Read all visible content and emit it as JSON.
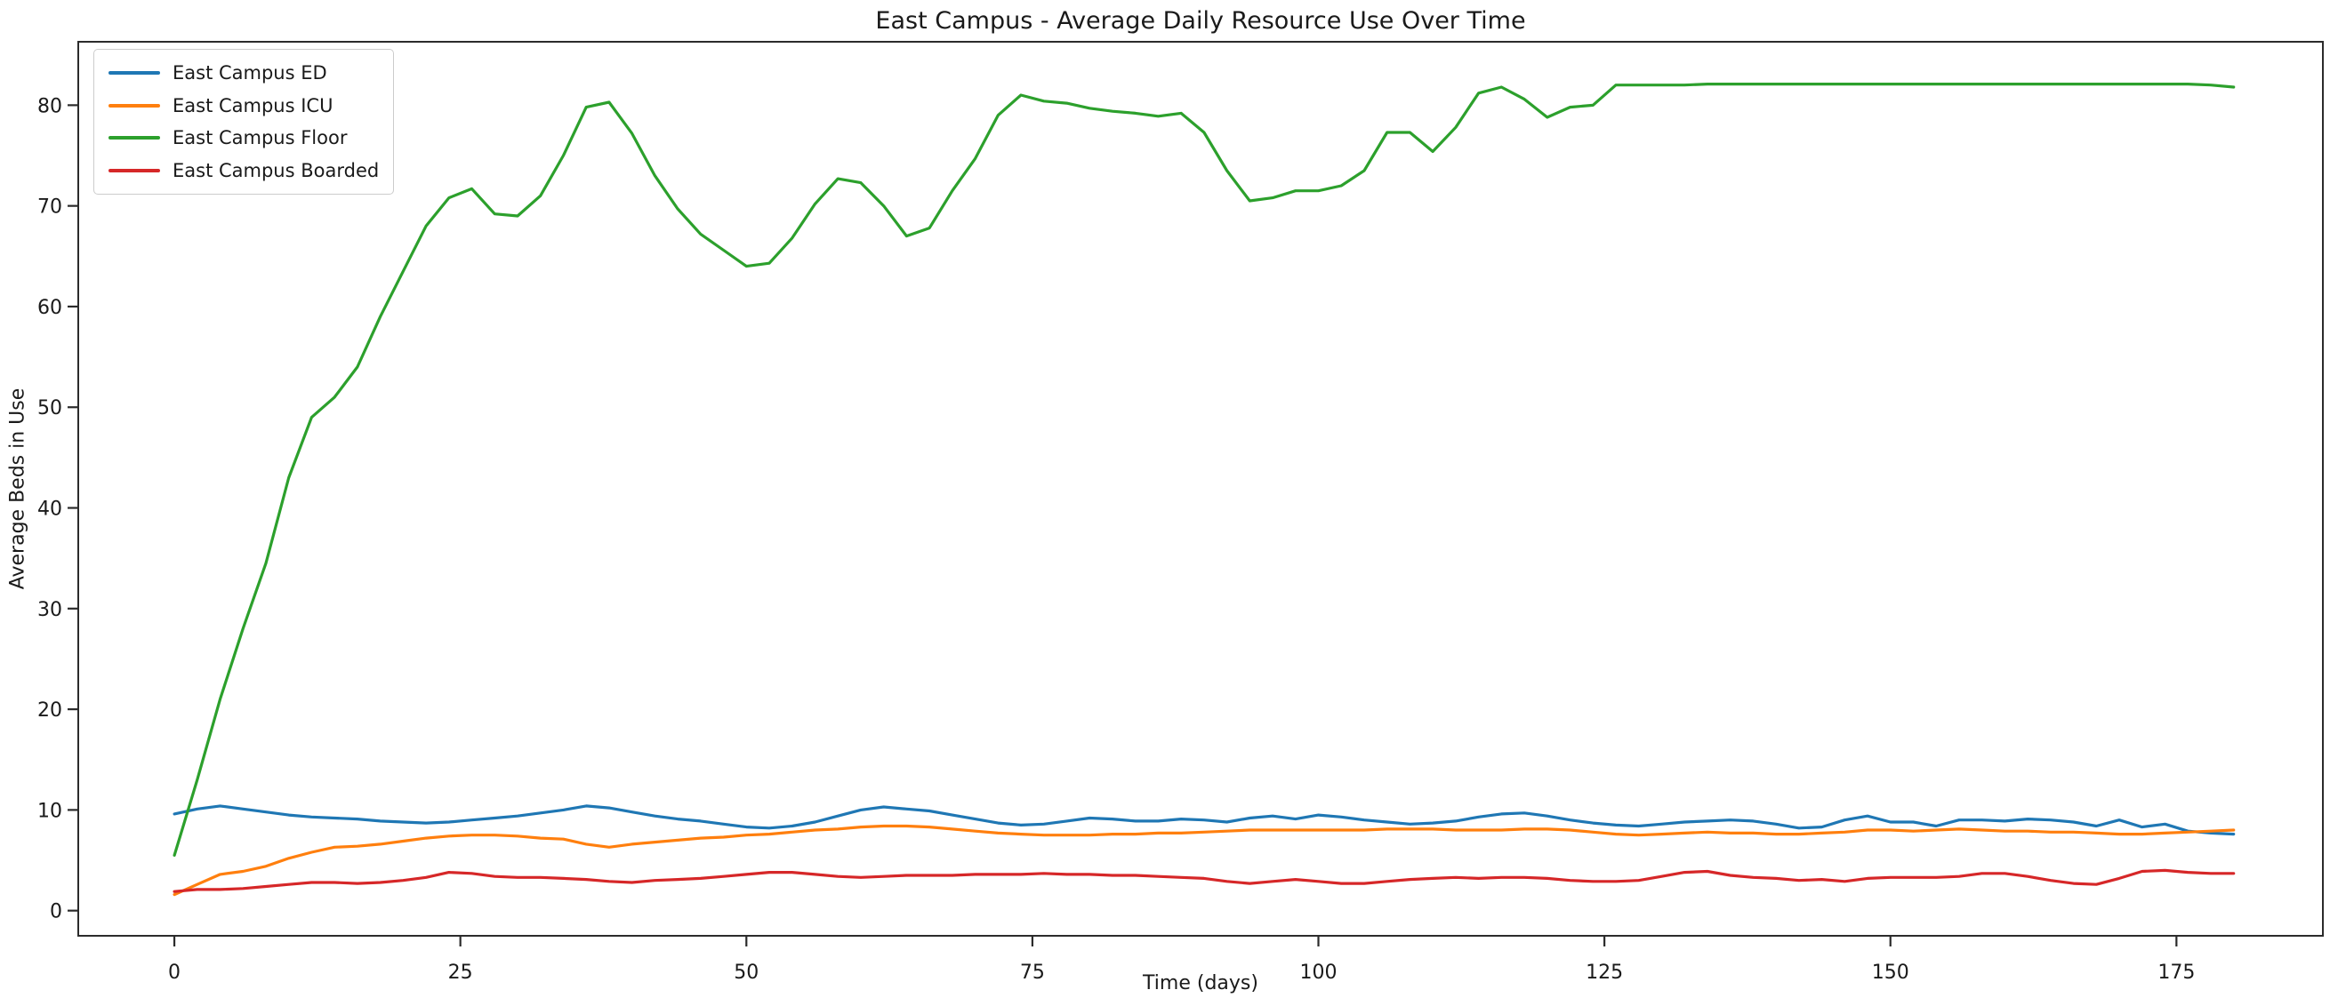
{
  "chart_data": {
    "type": "line",
    "title": "East Campus - Average Daily Resource Use Over Time",
    "xlabel": "Time (days)",
    "ylabel": "Average Beds in Use",
    "xlim": [
      -8.4,
      187.8
    ],
    "ylim": [
      -2.5,
      86.3
    ],
    "xticks": [
      0,
      25,
      50,
      75,
      100,
      125,
      150,
      175
    ],
    "yticks": [
      0,
      10,
      20,
      30,
      40,
      50,
      60,
      70,
      80
    ],
    "grid": false,
    "legend_position": "upper left",
    "x": [
      0,
      2,
      4,
      6,
      8,
      10,
      12,
      14,
      16,
      18,
      20,
      22,
      24,
      26,
      28,
      30,
      32,
      34,
      36,
      38,
      40,
      42,
      44,
      46,
      48,
      50,
      52,
      54,
      56,
      58,
      60,
      62,
      64,
      66,
      68,
      70,
      72,
      74,
      76,
      78,
      80,
      82,
      84,
      86,
      88,
      90,
      92,
      94,
      96,
      98,
      100,
      102,
      104,
      106,
      108,
      110,
      112,
      114,
      116,
      118,
      120,
      122,
      124,
      126,
      128,
      130,
      132,
      134,
      136,
      138,
      140,
      142,
      144,
      146,
      148,
      150,
      152,
      154,
      156,
      158,
      160,
      162,
      164,
      166,
      168,
      170,
      172,
      174,
      176,
      178,
      180
    ],
    "series": [
      {
        "name": "East Campus ED",
        "color": "#1f77b4",
        "values": [
          9.6,
          10.1,
          10.4,
          10.1,
          9.8,
          9.5,
          9.3,
          9.2,
          9.1,
          8.9,
          8.8,
          8.7,
          8.8,
          9.0,
          9.2,
          9.4,
          9.7,
          10.0,
          10.4,
          10.2,
          9.8,
          9.4,
          9.1,
          8.9,
          8.6,
          8.3,
          8.2,
          8.4,
          8.8,
          9.4,
          10.0,
          10.3,
          10.1,
          9.9,
          9.5,
          9.1,
          8.7,
          8.5,
          8.6,
          8.9,
          9.2,
          9.1,
          8.9,
          8.9,
          9.1,
          9.0,
          8.8,
          9.2,
          9.4,
          9.1,
          9.5,
          9.3,
          9.0,
          8.8,
          8.6,
          8.7,
          8.9,
          9.3,
          9.6,
          9.7,
          9.4,
          9.0,
          8.7,
          8.5,
          8.4,
          8.6,
          8.8,
          8.9,
          9.0,
          8.9,
          8.6,
          8.2,
          8.3,
          9.0,
          9.4,
          8.8,
          8.8,
          8.4,
          9.0,
          9.0,
          8.9,
          9.1,
          9.0,
          8.8,
          8.4,
          9.0,
          8.3,
          8.6,
          7.9,
          7.7,
          7.6
        ]
      },
      {
        "name": "East Campus ICU",
        "color": "#ff7f0e",
        "values": [
          1.6,
          2.6,
          3.6,
          3.9,
          4.4,
          5.2,
          5.8,
          6.3,
          6.4,
          6.6,
          6.9,
          7.2,
          7.4,
          7.5,
          7.5,
          7.4,
          7.2,
          7.1,
          6.6,
          6.3,
          6.6,
          6.8,
          7.0,
          7.2,
          7.3,
          7.5,
          7.6,
          7.8,
          8.0,
          8.1,
          8.3,
          8.4,
          8.4,
          8.3,
          8.1,
          7.9,
          7.7,
          7.6,
          7.5,
          7.5,
          7.5,
          7.6,
          7.6,
          7.7,
          7.7,
          7.8,
          7.9,
          8.0,
          8.0,
          8.0,
          8.0,
          8.0,
          8.0,
          8.1,
          8.1,
          8.1,
          8.0,
          8.0,
          8.0,
          8.1,
          8.1,
          8.0,
          7.8,
          7.6,
          7.5,
          7.6,
          7.7,
          7.8,
          7.7,
          7.7,
          7.6,
          7.6,
          7.7,
          7.8,
          8.0,
          8.0,
          7.9,
          8.0,
          8.1,
          8.0,
          7.9,
          7.9,
          7.8,
          7.8,
          7.7,
          7.6,
          7.6,
          7.7,
          7.8,
          7.9,
          8.0
        ]
      },
      {
        "name": "East Campus Floor",
        "color": "#2ca02c",
        "values": [
          5.5,
          13.0,
          21.0,
          28.0,
          34.5,
          43.0,
          49.0,
          51.0,
          54.0,
          59.0,
          63.5,
          68.0,
          70.8,
          71.7,
          69.2,
          69.0,
          71.0,
          75.0,
          79.8,
          80.3,
          77.2,
          73.0,
          69.7,
          67.2,
          65.6,
          64.0,
          64.3,
          66.8,
          70.2,
          72.7,
          72.3,
          70.0,
          67.0,
          67.8,
          71.5,
          74.7,
          79.0,
          81.0,
          80.4,
          80.2,
          79.7,
          79.4,
          79.2,
          78.9,
          79.2,
          77.3,
          73.5,
          70.5,
          70.8,
          71.5,
          71.5,
          72.0,
          73.5,
          77.3,
          77.3,
          75.4,
          77.8,
          81.2,
          81.8,
          80.6,
          78.8,
          79.8,
          80.0,
          82.0,
          82.0,
          82.0,
          82.0,
          82.1,
          82.1,
          82.1,
          82.1,
          82.1,
          82.1,
          82.1,
          82.1,
          82.1,
          82.1,
          82.1,
          82.1,
          82.1,
          82.1,
          82.1,
          82.1,
          82.1,
          82.1,
          82.1,
          82.1,
          82.1,
          82.1,
          82.0,
          81.8
        ]
      },
      {
        "name": "East Campus Boarded",
        "color": "#d62728",
        "values": [
          1.9,
          2.1,
          2.1,
          2.2,
          2.4,
          2.6,
          2.8,
          2.8,
          2.7,
          2.8,
          3.0,
          3.3,
          3.8,
          3.7,
          3.4,
          3.3,
          3.3,
          3.2,
          3.1,
          2.9,
          2.8,
          3.0,
          3.1,
          3.2,
          3.4,
          3.6,
          3.8,
          3.8,
          3.6,
          3.4,
          3.3,
          3.4,
          3.5,
          3.5,
          3.5,
          3.6,
          3.6,
          3.6,
          3.7,
          3.6,
          3.6,
          3.5,
          3.5,
          3.4,
          3.3,
          3.2,
          2.9,
          2.7,
          2.9,
          3.1,
          2.9,
          2.7,
          2.7,
          2.9,
          3.1,
          3.2,
          3.3,
          3.2,
          3.3,
          3.3,
          3.2,
          3.0,
          2.9,
          2.9,
          3.0,
          3.4,
          3.8,
          3.9,
          3.5,
          3.3,
          3.2,
          3.0,
          3.1,
          2.9,
          3.2,
          3.3,
          3.3,
          3.3,
          3.4,
          3.7,
          3.7,
          3.4,
          3.0,
          2.7,
          2.6,
          3.2,
          3.9,
          4.0,
          3.8,
          3.7,
          3.7
        ]
      }
    ]
  },
  "style": {
    "text_color": "#1a1a1a",
    "spine_color": "#2b2b2b",
    "tick_color": "#2b2b2b",
    "legend_border_color": "#cccccc",
    "background_color": "#ffffff"
  }
}
